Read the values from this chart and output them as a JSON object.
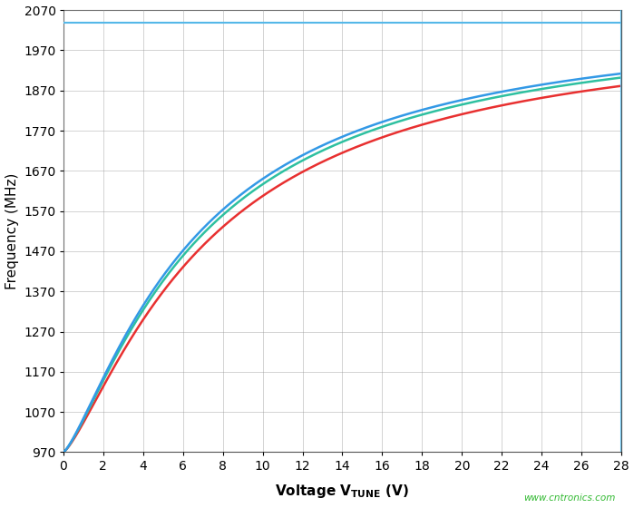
{
  "xlim": [
    0,
    28
  ],
  "ylim": [
    970,
    2070
  ],
  "xticks": [
    0,
    2,
    4,
    6,
    8,
    10,
    12,
    14,
    16,
    18,
    20,
    22,
    24,
    26,
    28
  ],
  "yticks": [
    970,
    1070,
    1170,
    1270,
    1370,
    1470,
    1570,
    1670,
    1770,
    1870,
    1970,
    2070
  ],
  "ylabel": "Frequency (MHz)",
  "hline_y": 2038,
  "hline_color": "#55b8e8",
  "vline_x": 28,
  "vline_color": "#55b8e8",
  "curve_colors": [
    "#e83030",
    "#2ec0a0",
    "#3399e6"
  ],
  "watermark": "www.cntronics.com",
  "watermark_color": "#2eb82e",
  "background_color": "#ffffff",
  "grid_color": "#999999",
  "tick_fontsize": 10,
  "label_fontsize": 11
}
